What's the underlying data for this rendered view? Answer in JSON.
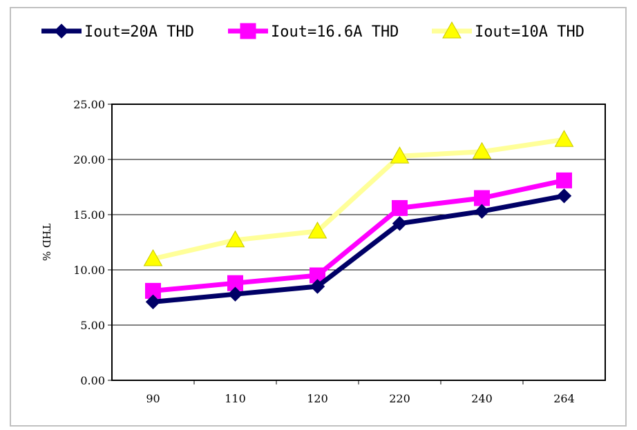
{
  "chart_data": {
    "type": "line",
    "categories": [
      "90",
      "110",
      "120",
      "220",
      "240",
      "264"
    ],
    "series": [
      {
        "name": "Iout=20A THD",
        "values": [
          7.1,
          7.8,
          8.5,
          14.2,
          15.3,
          16.7
        ],
        "color": "#000066",
        "marker": "diamond"
      },
      {
        "name": "Iout=16.6A THD",
        "values": [
          8.1,
          8.8,
          9.5,
          15.6,
          16.5,
          18.1
        ],
        "color": "#ff00ff",
        "marker": "square"
      },
      {
        "name": "Iout=10A THD",
        "values": [
          11.0,
          12.7,
          13.5,
          20.3,
          20.7,
          21.8
        ],
        "color": "#ffff99",
        "marker": "triangle",
        "marker_color": "#ffff00"
      }
    ],
    "ylabel": "THD %",
    "xlabel": "",
    "ylim": [
      0,
      25
    ],
    "yticks": [
      "0.00",
      "5.00",
      "10.00",
      "15.00",
      "20.00",
      "25.00"
    ],
    "grid": true,
    "legend_position": "top"
  }
}
